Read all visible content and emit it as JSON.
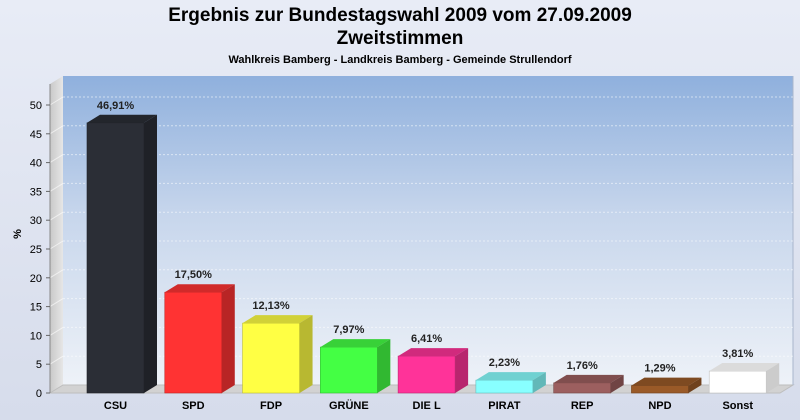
{
  "chart_data": {
    "type": "bar",
    "title_lines": [
      "Ergebnis zur Bundestagswahl 2009 vom 27.09.2009",
      "Zweitstimmen"
    ],
    "subtitle": "Wahlkreis Bamberg - Landkreis Bamberg - Gemeinde Strullendorf",
    "ylabel": "%",
    "xlabel": "",
    "ylim": [
      0,
      50
    ],
    "yticks": [
      0,
      5,
      10,
      15,
      20,
      25,
      30,
      35,
      40,
      45,
      50
    ],
    "grid": true,
    "categories": [
      "CSU",
      "SPD",
      "FDP",
      "GRÜNE",
      "DIE L",
      "PIRAT",
      "REP",
      "NPD",
      "Sonst"
    ],
    "values": [
      46.91,
      17.5,
      12.13,
      7.97,
      6.41,
      2.23,
      1.76,
      1.29,
      3.81
    ],
    "labels": [
      "46,91%",
      "17,50%",
      "12,13%",
      "7,97%",
      "6,41%",
      "2,23%",
      "1,76%",
      "1,29%",
      "3,81%"
    ],
    "colors": [
      "#2b2e36",
      "#ff3333",
      "#ffff44",
      "#44ff44",
      "#ff3399",
      "#88ffff",
      "#9c5f5f",
      "#9a5a28",
      "#ffffff"
    ]
  }
}
